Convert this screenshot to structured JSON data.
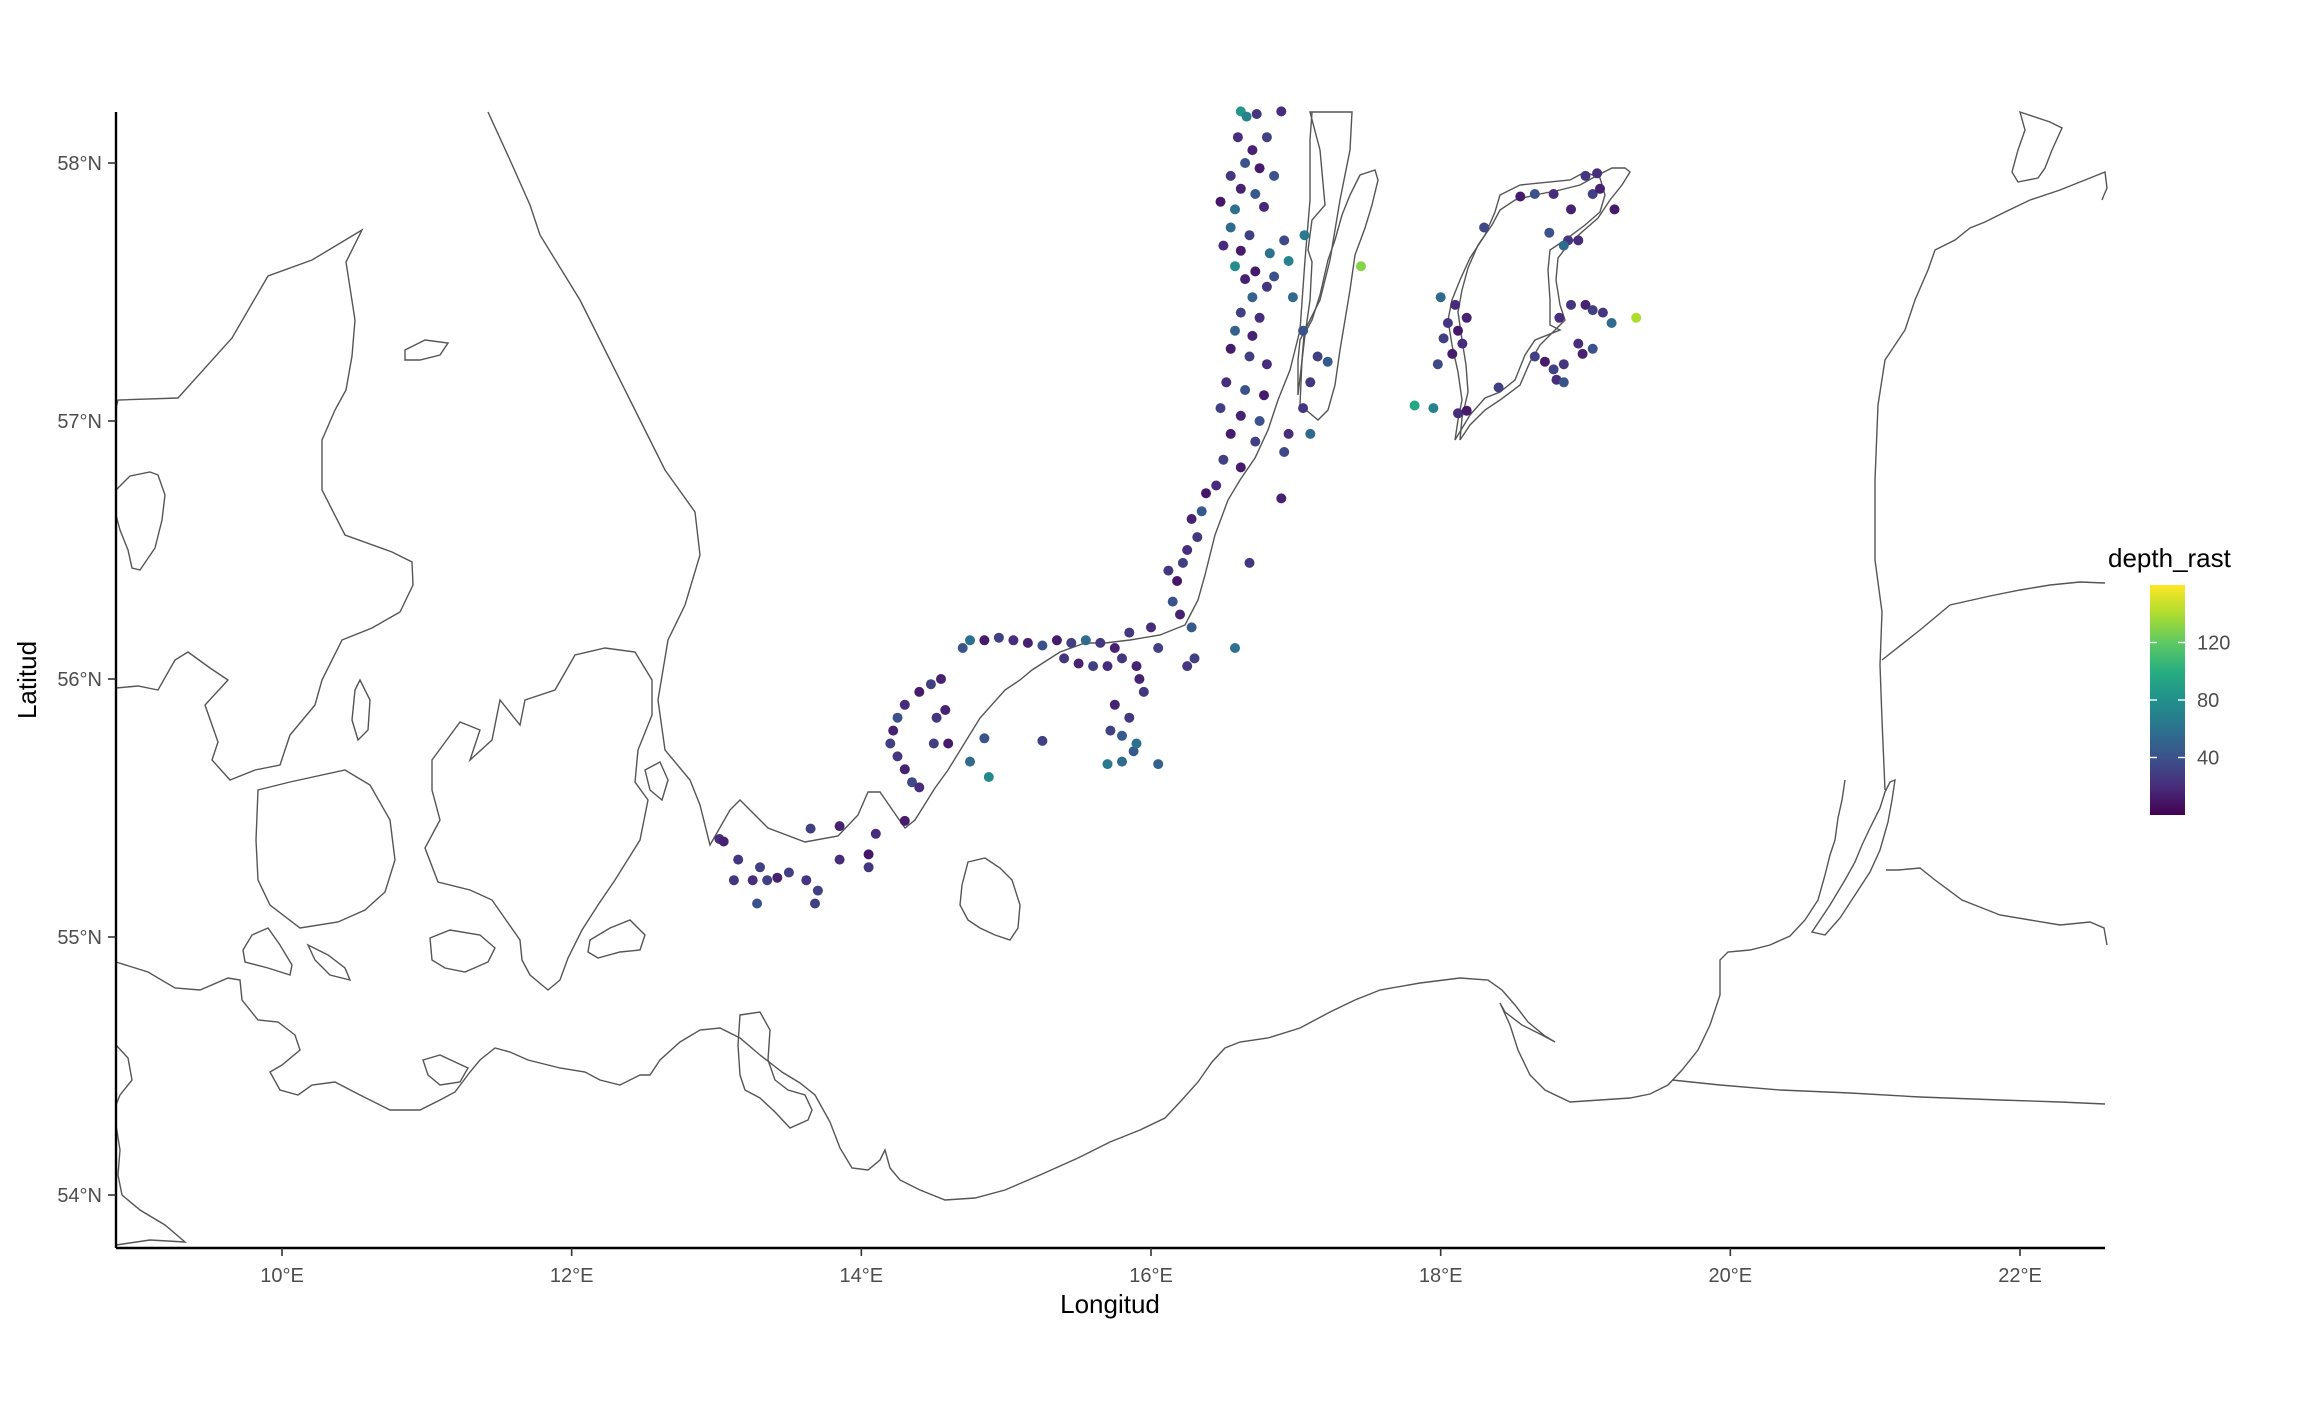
{
  "chart_data": {
    "type": "scatter",
    "title": "",
    "xlabel": "Longitud",
    "ylabel": "Latitud",
    "xlim": [
      8.87,
      22.6
    ],
    "ylim": [
      53.8,
      58.2
    ],
    "x_ticks": [
      {
        "value": 10,
        "label": "10°E"
      },
      {
        "value": 12,
        "label": "12°E"
      },
      {
        "value": 14,
        "label": "14°E"
      },
      {
        "value": 16,
        "label": "16°E"
      },
      {
        "value": 18,
        "label": "18°E"
      },
      {
        "value": 20,
        "label": "20°E"
      },
      {
        "value": 22,
        "label": "22°E"
      }
    ],
    "y_ticks": [
      {
        "value": 54,
        "label": "54°N"
      },
      {
        "value": 55,
        "label": "55°N"
      },
      {
        "value": 56,
        "label": "56°N"
      },
      {
        "value": 57,
        "label": "57°N"
      },
      {
        "value": 58,
        "label": "58°N"
      }
    ],
    "grid": false,
    "legend": {
      "title": "depth_rast",
      "position": "right",
      "colormap": "viridis",
      "range": [
        0,
        160
      ],
      "breaks": [
        {
          "value": 40,
          "label": "40"
        },
        {
          "value": 80,
          "label": "80"
        },
        {
          "value": 120,
          "label": "120"
        }
      ]
    },
    "point_color": "depth_rast",
    "points": [
      [
        16.62,
        58.2,
        85
      ],
      [
        16.66,
        58.18,
        70
      ],
      [
        16.73,
        58.19,
        25
      ],
      [
        16.9,
        58.2,
        20
      ],
      [
        16.6,
        58.1,
        20
      ],
      [
        16.7,
        58.05,
        15
      ],
      [
        16.8,
        58.1,
        30
      ],
      [
        16.65,
        58.0,
        40
      ],
      [
        16.75,
        57.98,
        12
      ],
      [
        16.55,
        57.95,
        25
      ],
      [
        16.85,
        57.95,
        40
      ],
      [
        16.62,
        57.9,
        15
      ],
      [
        16.72,
        57.88,
        45
      ],
      [
        16.48,
        57.85,
        10
      ],
      [
        16.58,
        57.82,
        60
      ],
      [
        16.78,
        57.83,
        18
      ],
      [
        16.55,
        57.75,
        55
      ],
      [
        16.68,
        57.72,
        30
      ],
      [
        16.92,
        57.7,
        35
      ],
      [
        17.06,
        57.72,
        65
      ],
      [
        16.5,
        57.68,
        20
      ],
      [
        16.62,
        57.66,
        12
      ],
      [
        16.82,
        57.65,
        60
      ],
      [
        16.95,
        57.62,
        70
      ],
      [
        16.58,
        57.6,
        78
      ],
      [
        16.72,
        57.58,
        12
      ],
      [
        16.85,
        57.56,
        40
      ],
      [
        16.65,
        57.55,
        15
      ],
      [
        16.8,
        57.52,
        25
      ],
      [
        16.7,
        57.48,
        50
      ],
      [
        16.98,
        57.48,
        55
      ],
      [
        16.62,
        57.42,
        30
      ],
      [
        16.75,
        57.4,
        20
      ],
      [
        16.58,
        57.35,
        50
      ],
      [
        16.7,
        57.33,
        15
      ],
      [
        17.05,
        57.35,
        40
      ],
      [
        16.55,
        57.28,
        12
      ],
      [
        16.68,
        57.25,
        30
      ],
      [
        16.8,
        57.22,
        20
      ],
      [
        17.15,
        57.25,
        30
      ],
      [
        17.22,
        57.23,
        45
      ],
      [
        16.52,
        57.15,
        20
      ],
      [
        16.65,
        57.12,
        40
      ],
      [
        16.78,
        57.1,
        12
      ],
      [
        17.1,
        57.15,
        25
      ],
      [
        16.48,
        57.05,
        30
      ],
      [
        16.62,
        57.02,
        15
      ],
      [
        16.75,
        57.0,
        40
      ],
      [
        17.05,
        57.05,
        25
      ],
      [
        16.55,
        56.95,
        12
      ],
      [
        16.72,
        56.92,
        30
      ],
      [
        16.95,
        56.95,
        20
      ],
      [
        17.1,
        56.95,
        55
      ],
      [
        16.5,
        56.85,
        30
      ],
      [
        16.62,
        56.82,
        12
      ],
      [
        16.92,
        56.88,
        35
      ],
      [
        16.45,
        56.75,
        20
      ],
      [
        16.38,
        56.72,
        10
      ],
      [
        16.9,
        56.7,
        15
      ],
      [
        16.35,
        56.65,
        45
      ],
      [
        16.28,
        56.62,
        15
      ],
      [
        16.32,
        56.55,
        25
      ],
      [
        16.25,
        56.5,
        20
      ],
      [
        16.22,
        56.45,
        30
      ],
      [
        16.68,
        56.45,
        25
      ],
      [
        16.12,
        56.42,
        25
      ],
      [
        16.18,
        56.38,
        10
      ],
      [
        16.15,
        56.3,
        40
      ],
      [
        16.2,
        56.25,
        15
      ],
      [
        16.28,
        56.2,
        45
      ],
      [
        16.0,
        56.2,
        20
      ],
      [
        15.85,
        56.18,
        25
      ],
      [
        16.05,
        56.12,
        30
      ],
      [
        16.3,
        56.08,
        30
      ],
      [
        16.58,
        56.12,
        60
      ],
      [
        16.25,
        56.05,
        25
      ],
      [
        15.9,
        56.05,
        15
      ],
      [
        14.75,
        56.15,
        60
      ],
      [
        14.85,
        56.15,
        12
      ],
      [
        14.95,
        56.16,
        30
      ],
      [
        15.05,
        56.15,
        20
      ],
      [
        15.15,
        56.14,
        15
      ],
      [
        15.25,
        56.13,
        40
      ],
      [
        15.35,
        56.15,
        12
      ],
      [
        15.45,
        56.14,
        30
      ],
      [
        15.55,
        56.15,
        55
      ],
      [
        15.65,
        56.14,
        25
      ],
      [
        15.75,
        56.12,
        15
      ],
      [
        14.7,
        56.12,
        40
      ],
      [
        15.4,
        56.08,
        25
      ],
      [
        15.5,
        56.06,
        15
      ],
      [
        15.6,
        56.05,
        30
      ],
      [
        15.7,
        56.05,
        20
      ],
      [
        15.8,
        56.08,
        25
      ],
      [
        14.55,
        56.0,
        15
      ],
      [
        14.48,
        55.98,
        30
      ],
      [
        14.4,
        55.95,
        12
      ],
      [
        14.3,
        55.9,
        20
      ],
      [
        14.25,
        55.85,
        40
      ],
      [
        14.22,
        55.8,
        15
      ],
      [
        14.2,
        55.75,
        30
      ],
      [
        14.25,
        55.7,
        25
      ],
      [
        14.3,
        55.65,
        15
      ],
      [
        14.35,
        55.6,
        35
      ],
      [
        14.4,
        55.58,
        20
      ],
      [
        14.52,
        55.85,
        25
      ],
      [
        14.58,
        55.88,
        15
      ],
      [
        14.5,
        55.75,
        30
      ],
      [
        14.6,
        55.75,
        12
      ],
      [
        14.75,
        55.68,
        55
      ],
      [
        14.88,
        55.62,
        75
      ],
      [
        14.85,
        55.77,
        40
      ],
      [
        15.25,
        55.76,
        30
      ],
      [
        15.75,
        55.9,
        15
      ],
      [
        15.85,
        55.85,
        25
      ],
      [
        15.72,
        55.8,
        30
      ],
      [
        15.8,
        55.78,
        45
      ],
      [
        15.7,
        55.67,
        65
      ],
      [
        15.8,
        55.68,
        55
      ],
      [
        15.88,
        55.72,
        45
      ],
      [
        15.9,
        55.75,
        60
      ],
      [
        16.05,
        55.67,
        50
      ],
      [
        15.95,
        55.95,
        25
      ],
      [
        15.92,
        56.0,
        15
      ],
      [
        14.3,
        55.45,
        12
      ],
      [
        14.1,
        55.4,
        20
      ],
      [
        13.85,
        55.43,
        15
      ],
      [
        13.65,
        55.42,
        30
      ],
      [
        13.02,
        55.38,
        20
      ],
      [
        13.05,
        55.37,
        15
      ],
      [
        13.15,
        55.3,
        25
      ],
      [
        13.3,
        55.27,
        30
      ],
      [
        13.12,
        55.22,
        25
      ],
      [
        13.25,
        55.22,
        20
      ],
      [
        13.35,
        55.22,
        30
      ],
      [
        13.42,
        55.23,
        15
      ],
      [
        13.5,
        55.25,
        30
      ],
      [
        13.62,
        55.22,
        25
      ],
      [
        13.7,
        55.18,
        30
      ],
      [
        13.85,
        55.3,
        20
      ],
      [
        14.05,
        55.32,
        10
      ],
      [
        14.05,
        55.27,
        25
      ],
      [
        13.28,
        55.13,
        40
      ],
      [
        13.68,
        55.13,
        30
      ],
      [
        17.45,
        57.6,
        130
      ],
      [
        18.1,
        57.45,
        20
      ],
      [
        18.18,
        57.4,
        15
      ],
      [
        18.05,
        57.38,
        25
      ],
      [
        18.12,
        57.35,
        10
      ],
      [
        18.02,
        57.32,
        30
      ],
      [
        18.15,
        57.3,
        20
      ],
      [
        18.08,
        57.26,
        12
      ],
      [
        17.98,
        57.22,
        35
      ],
      [
        18.0,
        57.48,
        55
      ],
      [
        17.82,
        57.06,
        95
      ],
      [
        17.95,
        57.05,
        70
      ],
      [
        18.12,
        57.03,
        20
      ],
      [
        18.18,
        57.04,
        12
      ],
      [
        18.4,
        57.13,
        30
      ],
      [
        18.3,
        57.75,
        35
      ],
      [
        18.55,
        57.87,
        12
      ],
      [
        18.65,
        57.88,
        40
      ],
      [
        18.78,
        57.88,
        20
      ],
      [
        18.9,
        57.82,
        15
      ],
      [
        18.75,
        57.73,
        40
      ],
      [
        18.88,
        57.7,
        25
      ],
      [
        18.85,
        57.68,
        55
      ],
      [
        18.95,
        57.7,
        20
      ],
      [
        19.05,
        57.88,
        30
      ],
      [
        19.1,
        57.9,
        15
      ],
      [
        19.0,
        57.95,
        25
      ],
      [
        19.08,
        57.96,
        20
      ],
      [
        19.2,
        57.82,
        12
      ],
      [
        18.82,
        57.4,
        20
      ],
      [
        18.9,
        57.45,
        25
      ],
      [
        19.0,
        57.45,
        15
      ],
      [
        19.05,
        57.43,
        30
      ],
      [
        19.12,
        57.42,
        25
      ],
      [
        19.18,
        57.38,
        55
      ],
      [
        18.95,
        57.3,
        20
      ],
      [
        19.05,
        57.28,
        40
      ],
      [
        18.98,
        57.26,
        15
      ],
      [
        18.85,
        57.22,
        25
      ],
      [
        18.78,
        57.2,
        30
      ],
      [
        18.72,
        57.23,
        12
      ],
      [
        18.8,
        57.16,
        20
      ],
      [
        18.85,
        57.15,
        40
      ],
      [
        18.65,
        57.25,
        30
      ],
      [
        19.35,
        57.4,
        140
      ]
    ]
  }
}
